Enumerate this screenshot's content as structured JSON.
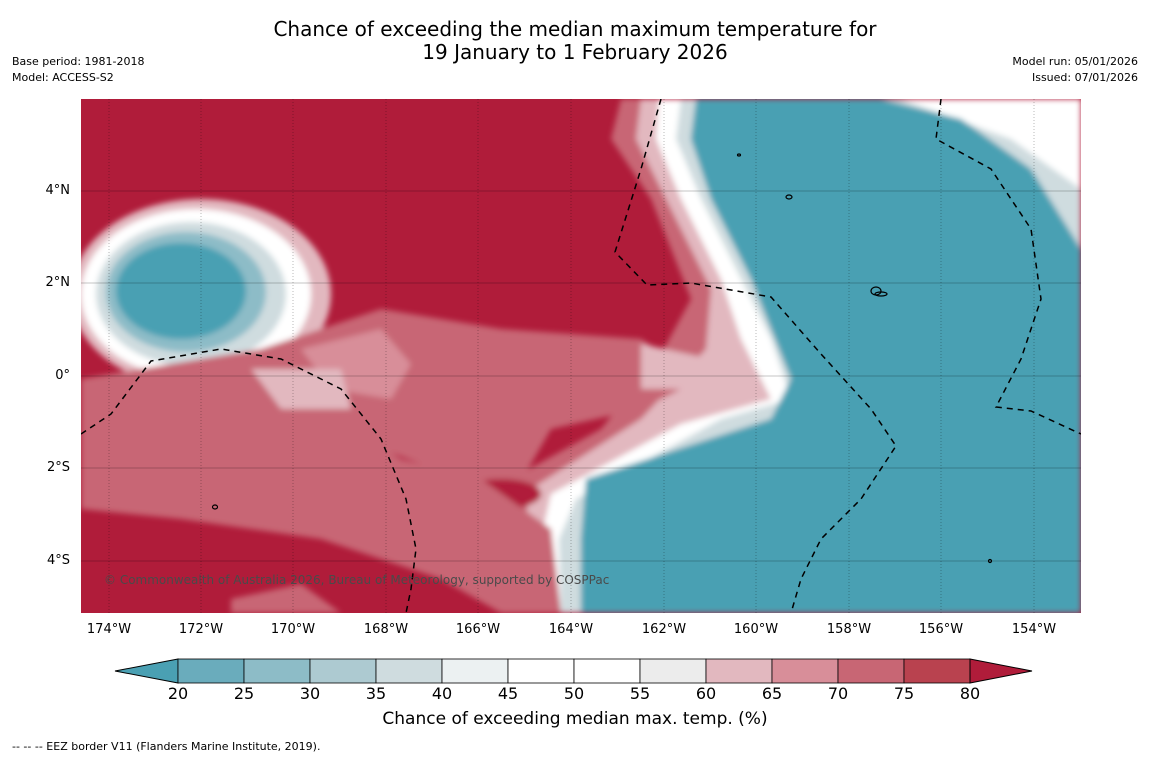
{
  "title": {
    "line1": "Chance of exceeding the median maximum temperature for",
    "line2": "19 January to 1 February 2026"
  },
  "meta_left": {
    "base_period": "Base period: 1981-2018",
    "model": "Model: ACCESS-S2"
  },
  "meta_right": {
    "model_run": "Model run: 05/01/2026",
    "issued": "Issued: 07/01/2026"
  },
  "map": {
    "lat_labels": [
      "4°N",
      "2°N",
      "0°",
      "2°S",
      "4°S"
    ],
    "lon_labels": [
      "174°W",
      "172°W",
      "170°W",
      "168°W",
      "166°W",
      "164°W",
      "162°W",
      "160°W",
      "158°W",
      "156°W",
      "154°W"
    ],
    "copyright": "© Commonwealth of Australia 2026, Bureau of Meteorology, supported by COSPPac"
  },
  "colorbar": {
    "ticks": [
      "20",
      "25",
      "30",
      "35",
      "40",
      "45",
      "50",
      "55",
      "60",
      "65",
      "70",
      "75",
      "80"
    ],
    "colors": [
      "#4aa0b3",
      "#6aacbc",
      "#8dbcc7",
      "#adcad1",
      "#cfdcdf",
      "#ecf1f2",
      "#ffffff",
      "#ffffff",
      "#ececec",
      "#e2b8bf",
      "#d88e99",
      "#c86674",
      "#b9424f",
      "#b01c3a"
    ],
    "label": "Chance of exceeding median max. temp. (%)"
  },
  "footnote": "--  --  -- EEZ border V11 (Flanders Marine Institute, 2019).",
  "colors": {
    "low": "#4aa0b3",
    "high": "#b01c3a",
    "neutral": "#ffffff"
  }
}
